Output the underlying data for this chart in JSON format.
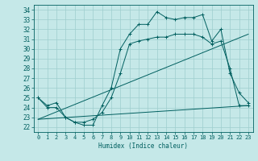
{
  "xlabel": "Humidex (Indice chaleur)",
  "xlim": [
    -0.5,
    23.5
  ],
  "ylim": [
    21.5,
    34.5
  ],
  "yticks": [
    22,
    23,
    24,
    25,
    26,
    27,
    28,
    29,
    30,
    31,
    32,
    33,
    34
  ],
  "xticks": [
    0,
    1,
    2,
    3,
    4,
    5,
    6,
    7,
    8,
    9,
    10,
    11,
    12,
    13,
    14,
    15,
    16,
    17,
    18,
    19,
    20,
    21,
    22,
    23
  ],
  "bg_color": "#c5e8e8",
  "line_color": "#005f5f",
  "grid_color": "#9ecece",
  "series": [
    {
      "x": [
        0,
        1,
        2,
        3,
        4,
        5,
        6,
        7,
        8,
        9,
        10,
        11,
        12,
        13,
        14,
        15,
        16,
        17,
        18,
        19,
        20,
        21,
        22,
        23
      ],
      "y": [
        25.0,
        24.2,
        24.5,
        23.0,
        22.5,
        22.2,
        22.2,
        24.2,
        26.0,
        30.0,
        31.5,
        32.5,
        32.5,
        33.8,
        33.2,
        33.0,
        33.2,
        33.2,
        33.5,
        30.8,
        32.0,
        27.5,
        25.5,
        24.5
      ],
      "marker": "+"
    },
    {
      "x": [
        0,
        1,
        2,
        3,
        4,
        5,
        6,
        7,
        8,
        9,
        10,
        11,
        12,
        13,
        14,
        15,
        16,
        17,
        18,
        19,
        20,
        21,
        22,
        23
      ],
      "y": [
        25.0,
        24.0,
        24.0,
        23.0,
        22.5,
        22.5,
        22.8,
        23.5,
        25.0,
        27.5,
        30.5,
        30.8,
        31.0,
        31.2,
        31.2,
        31.5,
        31.5,
        31.5,
        31.2,
        30.5,
        30.8,
        28.0,
        24.2,
        24.2
      ],
      "marker": "+"
    },
    {
      "x": [
        0,
        23
      ],
      "y": [
        22.8,
        24.2
      ],
      "marker": null
    },
    {
      "x": [
        0,
        23
      ],
      "y": [
        22.8,
        31.5
      ],
      "marker": null
    }
  ]
}
